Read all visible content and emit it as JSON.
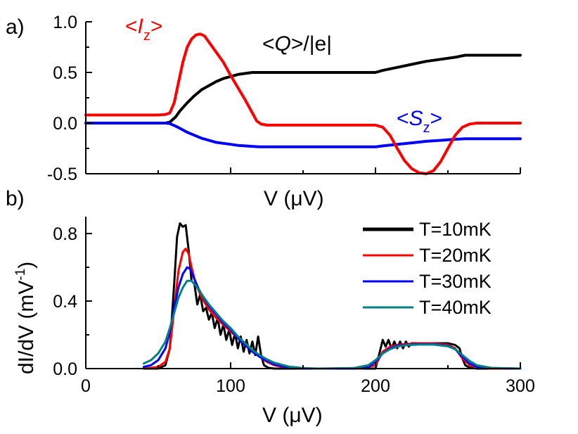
{
  "chart_data": [
    {
      "panel": "a)",
      "type": "line",
      "title": "",
      "xlabel_prefix": "V (",
      "xlabel_mu": "μ",
      "xlabel_suffix": "V)",
      "ylabel": "",
      "xlim": [
        0,
        300
      ],
      "ylim": [
        -0.5,
        1.0
      ],
      "yticks": [
        "-0.5",
        "0.0",
        "0.5",
        "1.0"
      ],
      "grid": false,
      "series": [
        {
          "name": "<I_z>",
          "label_lt": "<",
          "label_main": "I",
          "label_sub": "z",
          "label_gt": ">",
          "color": "#ff0000",
          "x": [
            0,
            50,
            55,
            58,
            61,
            64,
            67,
            70,
            73,
            76,
            79,
            82,
            85,
            90,
            95,
            100,
            105,
            110,
            115,
            118,
            121,
            125,
            130,
            150,
            200,
            205,
            210,
            215,
            220,
            225,
            230,
            235,
            240,
            245,
            250,
            255,
            260,
            265,
            270,
            300
          ],
          "y": [
            0.08,
            0.08,
            0.085,
            0.1,
            0.2,
            0.4,
            0.6,
            0.75,
            0.83,
            0.87,
            0.88,
            0.86,
            0.8,
            0.7,
            0.6,
            0.47,
            0.35,
            0.23,
            0.1,
            0.02,
            -0.01,
            -0.02,
            -0.02,
            -0.02,
            -0.02,
            -0.04,
            -0.12,
            -0.25,
            -0.37,
            -0.45,
            -0.49,
            -0.5,
            -0.47,
            -0.38,
            -0.25,
            -0.12,
            -0.04,
            -0.01,
            0.0,
            0.0
          ]
        },
        {
          "name": "<Q>/|e|",
          "label_lt": "<",
          "label_main": "Q",
          "label_gt": ">",
          "label_rest": "/|e|",
          "color": "#000000",
          "x": [
            0,
            55,
            58,
            62,
            65,
            70,
            75,
            80,
            85,
            90,
            95,
            100,
            105,
            110,
            115,
            120,
            125,
            150,
            200,
            205,
            215,
            225,
            235,
            245,
            255,
            262,
            270,
            300
          ],
          "y": [
            0.0,
            0.0,
            0.01,
            0.06,
            0.12,
            0.2,
            0.27,
            0.33,
            0.37,
            0.41,
            0.44,
            0.46,
            0.48,
            0.49,
            0.5,
            0.5,
            0.5,
            0.5,
            0.5,
            0.52,
            0.55,
            0.58,
            0.61,
            0.63,
            0.65,
            0.67,
            0.67,
            0.67
          ]
        },
        {
          "name": "<S_z>",
          "label_lt": "<",
          "label_main": "S",
          "label_sub": "z",
          "label_gt": ">",
          "color": "#0000ff",
          "x": [
            0,
            55,
            58,
            62,
            66,
            70,
            75,
            80,
            85,
            90,
            95,
            100,
            105,
            110,
            115,
            120,
            125,
            150,
            200,
            205,
            215,
            225,
            235,
            245,
            255,
            262,
            270,
            300
          ],
          "y": [
            0.0,
            0.0,
            -0.005,
            -0.03,
            -0.06,
            -0.09,
            -0.12,
            -0.15,
            -0.17,
            -0.19,
            -0.2,
            -0.21,
            -0.22,
            -0.225,
            -0.23,
            -0.235,
            -0.235,
            -0.235,
            -0.235,
            -0.225,
            -0.21,
            -0.195,
            -0.18,
            -0.17,
            -0.16,
            -0.155,
            -0.155,
            -0.155
          ]
        }
      ]
    },
    {
      "panel": "b)",
      "type": "line",
      "title": "",
      "xlabel_prefix": "V (",
      "xlabel_mu": "μ",
      "xlabel_suffix": "V)",
      "ylabel_main": "dI/dV (mV",
      "ylabel_sup": "-1",
      "ylabel_end": ")",
      "xlim": [
        0,
        300
      ],
      "ylim": [
        0,
        0.9
      ],
      "xticks": [
        "0",
        "100",
        "200",
        "300"
      ],
      "yticks": [
        "0.0",
        "0.4",
        "0.8"
      ],
      "grid": false,
      "legend_position": "top-right",
      "series": [
        {
          "name": "T=10mK",
          "color": "#000000",
          "x": [
            40,
            50,
            55,
            58,
            61,
            63,
            65,
            67,
            69,
            71,
            73,
            75,
            77,
            79,
            81,
            83,
            85,
            87,
            89,
            91,
            93,
            95,
            97,
            99,
            101,
            103,
            105,
            107,
            109,
            111,
            113,
            115,
            117,
            119,
            121,
            123,
            126,
            130,
            140,
            150,
            180,
            200,
            203,
            205,
            207,
            209,
            211,
            213,
            215,
            217,
            219,
            221,
            223,
            225,
            230,
            240,
            250,
            255,
            258,
            260,
            262,
            265,
            270,
            300
          ],
          "y": [
            0.0,
            0.0,
            0.02,
            0.12,
            0.5,
            0.78,
            0.86,
            0.84,
            0.85,
            0.7,
            0.52,
            0.5,
            0.38,
            0.44,
            0.34,
            0.36,
            0.29,
            0.33,
            0.24,
            0.3,
            0.2,
            0.26,
            0.17,
            0.23,
            0.14,
            0.21,
            0.12,
            0.19,
            0.1,
            0.17,
            0.09,
            0.16,
            0.08,
            0.19,
            0.08,
            0.02,
            0.005,
            0.0,
            0.0,
            0.0,
            0.0,
            0.0,
            0.1,
            0.17,
            0.13,
            0.17,
            0.12,
            0.16,
            0.12,
            0.16,
            0.12,
            0.16,
            0.13,
            0.15,
            0.15,
            0.15,
            0.15,
            0.14,
            0.12,
            0.06,
            0.02,
            0.005,
            0.0,
            0.0
          ]
        },
        {
          "name": "T=20mK",
          "color": "#ff0000",
          "x": [
            40,
            50,
            55,
            58,
            61,
            64,
            67,
            69,
            71,
            73,
            76,
            80,
            85,
            90,
            95,
            100,
            105,
            110,
            115,
            120,
            125,
            130,
            140,
            150,
            190,
            200,
            205,
            210,
            215,
            220,
            230,
            240,
            250,
            255,
            260,
            265,
            270,
            280,
            300
          ],
          "y": [
            0.0,
            0.01,
            0.04,
            0.12,
            0.35,
            0.58,
            0.69,
            0.71,
            0.68,
            0.6,
            0.5,
            0.42,
            0.35,
            0.3,
            0.26,
            0.22,
            0.18,
            0.14,
            0.1,
            0.07,
            0.04,
            0.02,
            0.004,
            0.0,
            0.0,
            0.02,
            0.1,
            0.13,
            0.14,
            0.145,
            0.15,
            0.15,
            0.14,
            0.12,
            0.06,
            0.02,
            0.005,
            0.0,
            0.0
          ]
        },
        {
          "name": "T=30mK",
          "color": "#0000ff",
          "x": [
            40,
            45,
            50,
            55,
            58,
            61,
            64,
            67,
            70,
            72,
            75,
            78,
            82,
            86,
            90,
            95,
            100,
            105,
            110,
            115,
            120,
            125,
            130,
            140,
            150,
            185,
            195,
            200,
            205,
            210,
            215,
            220,
            230,
            240,
            250,
            255,
            260,
            265,
            270,
            280,
            300
          ],
          "y": [
            0.01,
            0.02,
            0.05,
            0.12,
            0.22,
            0.36,
            0.48,
            0.56,
            0.6,
            0.59,
            0.53,
            0.47,
            0.41,
            0.36,
            0.32,
            0.27,
            0.23,
            0.18,
            0.14,
            0.1,
            0.07,
            0.045,
            0.025,
            0.006,
            0.0,
            0.0,
            0.01,
            0.04,
            0.09,
            0.12,
            0.135,
            0.14,
            0.145,
            0.145,
            0.135,
            0.115,
            0.07,
            0.03,
            0.01,
            0.002,
            0.0
          ]
        },
        {
          "name": "T=40mK",
          "color": "#008080",
          "x": [
            40,
            45,
            50,
            55,
            58,
            61,
            64,
            67,
            70,
            73,
            76,
            80,
            85,
            90,
            95,
            100,
            105,
            110,
            115,
            120,
            125,
            130,
            140,
            150,
            160,
            185,
            195,
            200,
            205,
            210,
            215,
            220,
            230,
            240,
            250,
            255,
            260,
            265,
            270,
            280,
            300
          ],
          "y": [
            0.03,
            0.05,
            0.09,
            0.16,
            0.24,
            0.33,
            0.42,
            0.48,
            0.52,
            0.52,
            0.49,
            0.44,
            0.38,
            0.33,
            0.28,
            0.24,
            0.19,
            0.15,
            0.11,
            0.08,
            0.055,
            0.035,
            0.012,
            0.003,
            0.0,
            0.003,
            0.02,
            0.05,
            0.09,
            0.115,
            0.13,
            0.138,
            0.142,
            0.142,
            0.132,
            0.115,
            0.08,
            0.045,
            0.02,
            0.004,
            0.0
          ]
        }
      ]
    }
  ]
}
